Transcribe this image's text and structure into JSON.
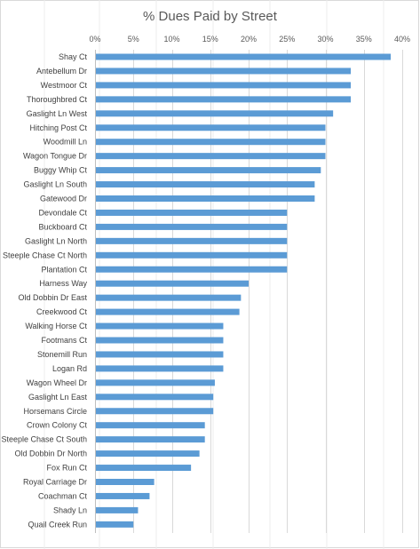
{
  "chart_data": {
    "type": "bar",
    "orientation": "horizontal",
    "title": "% Dues Paid by Street",
    "xlabel": "",
    "ylabel": "",
    "x_ticks": [
      "0%",
      "5%",
      "10%",
      "15%",
      "20%",
      "25%",
      "30%",
      "35%",
      "40%"
    ],
    "xlim": [
      0,
      40
    ],
    "x_axis_position": "top",
    "grid": true,
    "bar_color": "#5b9bd5",
    "categories": [
      "Shay Ct",
      "Antebellum Dr",
      "Westmoor Ct",
      "Thoroughbred Ct",
      "Gaslight Ln West",
      "Hitching Post Ct",
      "Woodmill Ln",
      "Wagon Tongue Dr",
      "Buggy Whip Ct",
      "Gaslight Ln South",
      "Gatewood Dr",
      "Devondale Ct",
      "Buckboard Ct",
      "Gaslight Ln North",
      "Steeple Chase Ct North",
      "Plantation Ct",
      "Harness Way",
      "Old Dobbin Dr East",
      "Creekwood Ct",
      "Walking Horse Ct",
      "Footmans Ct",
      "Stonemill Run",
      "Logan Rd",
      "Wagon Wheel Dr",
      "Gaslight Ln East",
      "Horsemans Circle",
      "Crown Colony Ct",
      "Steeple Chase Ct South",
      "Old Dobbin Dr North",
      "Fox Run Ct",
      "Royal Carriage Dr",
      "Coachman Ct",
      "Shady Ln",
      "Quail Creek Run"
    ],
    "values": [
      38.5,
      33.3,
      33.3,
      33.3,
      31.0,
      30.0,
      30.0,
      30.0,
      29.4,
      28.6,
      28.6,
      25.0,
      25.0,
      25.0,
      25.0,
      25.0,
      20.0,
      19.0,
      18.8,
      16.7,
      16.7,
      16.7,
      16.7,
      15.6,
      15.4,
      15.4,
      14.3,
      14.3,
      13.6,
      12.5,
      7.7,
      7.1,
      5.6,
      5.0
    ]
  }
}
